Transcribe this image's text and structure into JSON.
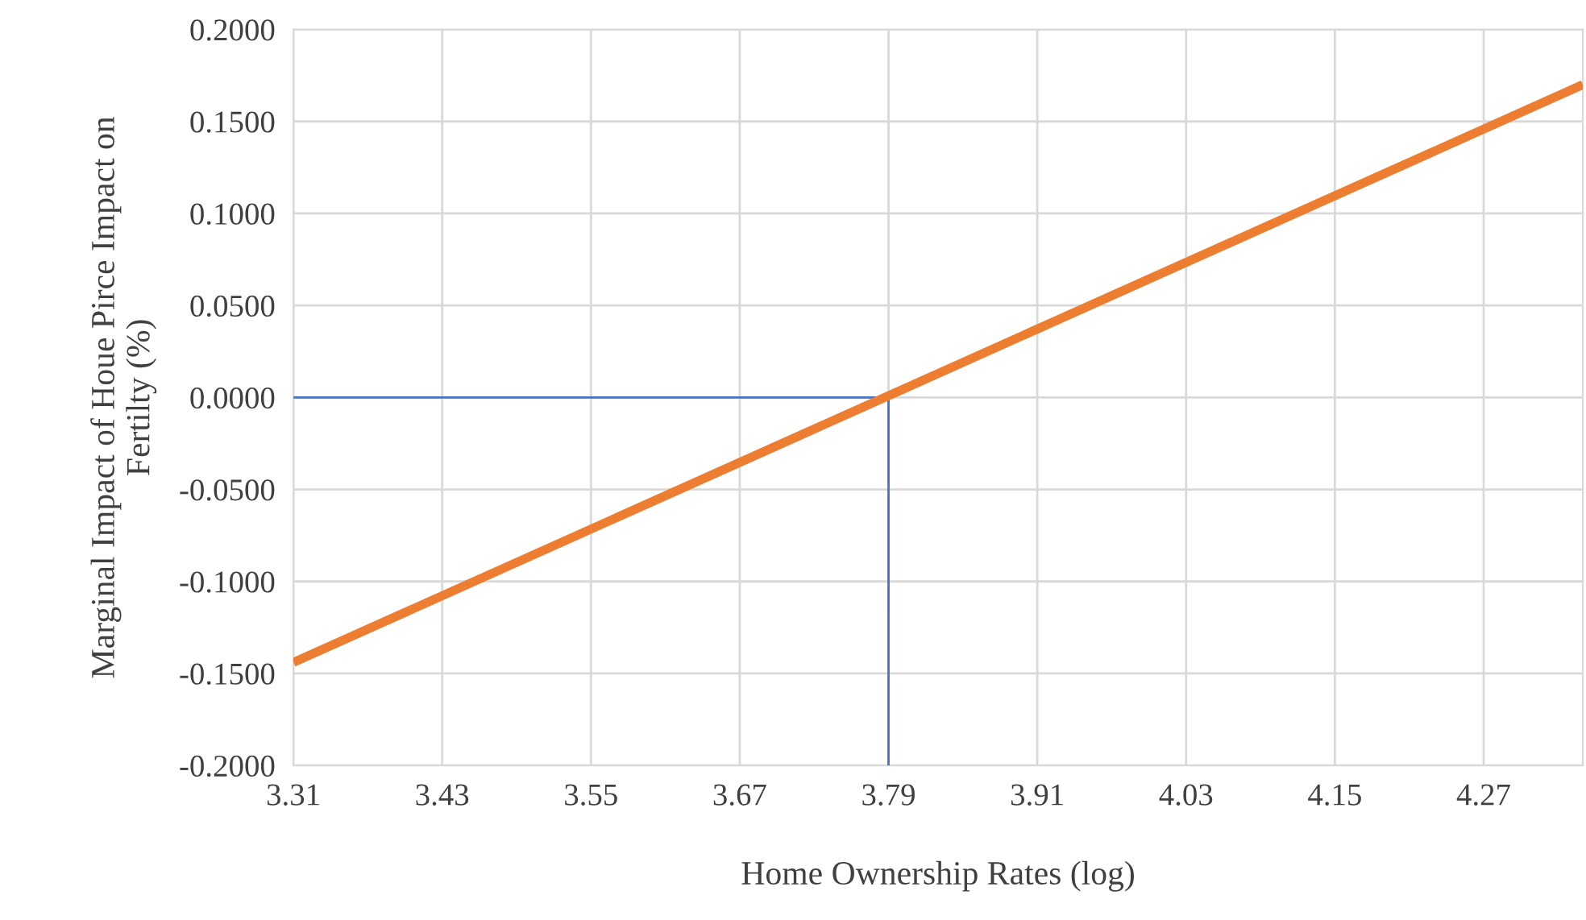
{
  "chart_data": {
    "type": "line",
    "xlabel": "Home Ownership Rates (log)",
    "ylabel": "Marginal Impact of Houe Pirce Impact on\nFertilty (%)",
    "series": [
      {
        "color": "#4472c4",
        "x": [
          3.31,
          3.79,
          3.79
        ],
        "values": [
          0,
          0,
          -0.2
        ]
      },
      {
        "color": "#ed7d31",
        "x": [
          3.31,
          4.35
        ],
        "values": [
          -0.144,
          0.17
        ]
      }
    ],
    "xlim": [
      3.31,
      4.35
    ],
    "xticks": [
      3.31,
      3.43,
      3.55,
      3.67,
      3.79,
      3.91,
      4.03,
      4.15,
      4.27
    ],
    "ylim": [
      -0.2,
      0.2
    ],
    "yticks": [
      {
        "value": -0.2,
        "label": "-0.2000"
      },
      {
        "value": -0.15,
        "label": "-0.1500"
      },
      {
        "value": -0.1,
        "label": "-0.1000"
      },
      {
        "value": -0.05,
        "label": "-0.0500"
      },
      {
        "value": 0,
        "label": "0.0000"
      },
      {
        "value": 0.05,
        "label": "0.0500"
      },
      {
        "value": 0.1,
        "label": "0.1000"
      },
      {
        "value": 0.15,
        "label": "0.1500"
      },
      {
        "value": 0.2,
        "label": "0.2000"
      }
    ],
    "grid": true,
    "legend": false,
    "marker": "none",
    "line_style": "solid"
  }
}
